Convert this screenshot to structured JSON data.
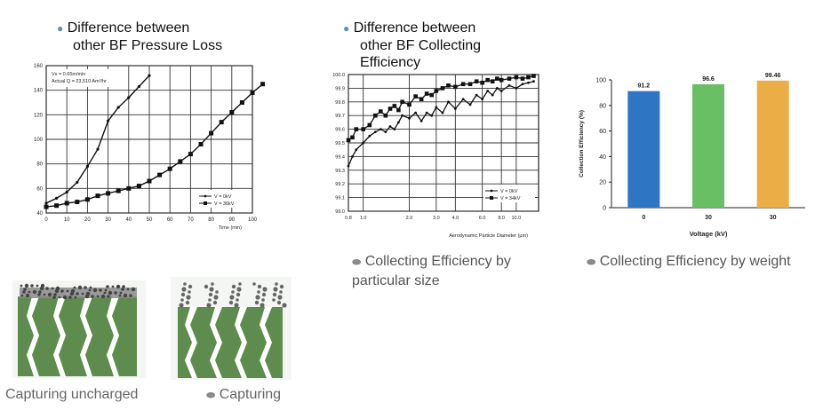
{
  "headings": {
    "pressure_loss": [
      "Difference between",
      "other BF Pressure Loss"
    ],
    "collecting_eff": [
      "Difference between",
      "other BF Collecting",
      "Efficiency"
    ]
  },
  "captions": {
    "by_size": [
      "Collecting Efficiency by",
      "particular size"
    ],
    "by_weight": "Collecting Efficiency by weight",
    "uncharged": "Capturing uncharged",
    "charged": "Capturing"
  },
  "colors": {
    "bullet_blue": "#5b8fbf",
    "green": "#5e8c4e",
    "bar_blue": "#2e75c4",
    "bar_green": "#69bf64",
    "bar_orange": "#ebae47"
  },
  "chart_data": [
    {
      "type": "line",
      "note": [
        "Vs = 0.65m/min",
        "Actual Q = 23,510 Am³/hr"
      ],
      "xlabel": "Time (min)",
      "ylabel": "",
      "xlim": [
        0,
        100
      ],
      "ylim": [
        40,
        160
      ],
      "xticks": [
        0,
        10,
        20,
        30,
        40,
        50,
        60,
        70,
        80,
        90,
        100
      ],
      "yticks": [
        40,
        60,
        80,
        100,
        120,
        140,
        160
      ],
      "legend": [
        "V = 0kV",
        "V = 36kV"
      ],
      "series": [
        {
          "name": "V = 0kV",
          "marker": "dot",
          "x": [
            0,
            5,
            10,
            15,
            20,
            25,
            30,
            35,
            40,
            45,
            50
          ],
          "y": [
            48,
            52,
            57,
            65,
            78,
            92,
            115,
            126,
            134,
            143,
            152
          ]
        },
        {
          "name": "V = 36kV",
          "marker": "square",
          "x": [
            0,
            5,
            10,
            15,
            20,
            25,
            30,
            35,
            40,
            45,
            50,
            55,
            60,
            65,
            70,
            75,
            80,
            85,
            90,
            95,
            100,
            105
          ],
          "y": [
            45,
            46,
            48,
            49,
            51,
            54,
            56,
            58,
            60,
            62,
            66,
            71,
            76,
            82,
            88,
            96,
            105,
            114,
            122,
            130,
            138,
            145
          ]
        }
      ]
    },
    {
      "type": "line",
      "xlabel": "Aerodynamic Particle Diameter (µm)",
      "ylabel": "",
      "xscale": "log",
      "xlim": [
        0.8,
        14
      ],
      "ylim": [
        99.0,
        100.0
      ],
      "xticks": [
        0.8,
        1.0,
        2.0,
        3.0,
        4.0,
        6.0,
        8.0,
        10.0
      ],
      "yticks": [
        99.0,
        99.1,
        99.2,
        99.3,
        99.4,
        99.5,
        99.6,
        99.7,
        99.8,
        99.9,
        100.0
      ],
      "legend": [
        "V = 0kV",
        "V = 34kV"
      ],
      "series": [
        {
          "name": "V = 0kV",
          "marker": "dot",
          "x": [
            0.8,
            0.85,
            0.9,
            1.0,
            1.1,
            1.2,
            1.3,
            1.4,
            1.5,
            1.6,
            1.7,
            1.8,
            2.0,
            2.2,
            2.4,
            2.6,
            2.8,
            3.0,
            3.3,
            3.6,
            4.0,
            4.5,
            5.0,
            5.5,
            6.0,
            6.5,
            7.0,
            7.5,
            8.0,
            9.0,
            10.0,
            11.0,
            12.0,
            13.0
          ],
          "y": [
            99.33,
            99.4,
            99.45,
            99.5,
            99.55,
            99.58,
            99.6,
            99.58,
            99.62,
            99.6,
            99.65,
            99.7,
            99.68,
            99.72,
            99.66,
            99.72,
            99.7,
            99.76,
            99.72,
            99.8,
            99.75,
            99.82,
            99.78,
            99.85,
            99.82,
            99.88,
            99.85,
            99.9,
            99.88,
            99.92,
            99.9,
            99.93,
            99.94,
            99.95
          ]
        },
        {
          "name": "V = 34kV",
          "marker": "square",
          "x": [
            0.8,
            0.85,
            0.9,
            1.0,
            1.1,
            1.2,
            1.3,
            1.4,
            1.5,
            1.6,
            1.7,
            1.8,
            2.0,
            2.2,
            2.4,
            2.6,
            2.8,
            3.0,
            3.3,
            3.6,
            4.0,
            4.5,
            5.0,
            5.5,
            6.0,
            6.5,
            7.0,
            7.5,
            8.0,
            9.0,
            10.0,
            11.0,
            12.0,
            13.0
          ],
          "y": [
            99.52,
            99.54,
            99.6,
            99.6,
            99.63,
            99.7,
            99.73,
            99.7,
            99.75,
            99.77,
            99.74,
            99.8,
            99.78,
            99.84,
            99.82,
            99.86,
            99.85,
            99.88,
            99.9,
            99.92,
            99.91,
            99.93,
            99.93,
            99.95,
            99.94,
            99.96,
            99.95,
            99.97,
            99.96,
            99.97,
            99.98,
            99.97,
            99.98,
            99.99
          ]
        }
      ]
    },
    {
      "type": "bar",
      "categories": [
        "0",
        "30",
        "30"
      ],
      "values": [
        91.2,
        96.6,
        99.46
      ],
      "value_labels": [
        "91.2",
        "96.6",
        "99.46"
      ],
      "xlabel": "Voltage (kV)",
      "ylabel": "Collection Efficiency (%)",
      "ylim": [
        0,
        100
      ],
      "yticks": [
        0,
        20,
        40,
        60,
        80,
        100
      ],
      "colors": [
        "#2e75c4",
        "#69bf64",
        "#ebae47"
      ]
    }
  ]
}
